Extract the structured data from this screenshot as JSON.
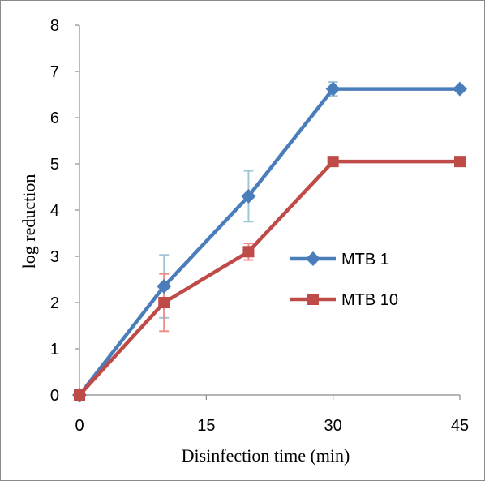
{
  "chart_data": {
    "type": "line",
    "xlabel": "Disinfection time (min)",
    "ylabel": "log reduction",
    "xlim": [
      0,
      45
    ],
    "ylim": [
      0,
      8
    ],
    "x_ticks": [
      0,
      15,
      30,
      45
    ],
    "y_ticks": [
      0,
      1,
      2,
      3,
      4,
      5,
      6,
      7,
      8
    ],
    "grid": false,
    "legend_position": "right-middle",
    "series": [
      {
        "name": "MTB 1",
        "color": "#4a7ebb",
        "error_color": "#9ec6d6",
        "marker": "diamond",
        "points": [
          {
            "x": 0,
            "y": 0,
            "err": 0
          },
          {
            "x": 10,
            "y": 2.35,
            "err": 0.68
          },
          {
            "x": 20,
            "y": 4.3,
            "err": 0.55
          },
          {
            "x": 30,
            "y": 6.62,
            "err": 0.15
          },
          {
            "x": 45,
            "y": 6.62,
            "err": 0
          }
        ]
      },
      {
        "name": "MTB 10",
        "color": "#be4b48",
        "error_color": "#f08c88",
        "marker": "square",
        "points": [
          {
            "x": 0,
            "y": 0,
            "err": 0
          },
          {
            "x": 10,
            "y": 2.0,
            "err": 0.62
          },
          {
            "x": 20,
            "y": 3.1,
            "err": 0.18
          },
          {
            "x": 30,
            "y": 5.05,
            "err": 0
          },
          {
            "x": 45,
            "y": 5.05,
            "err": 0
          }
        ]
      }
    ]
  }
}
